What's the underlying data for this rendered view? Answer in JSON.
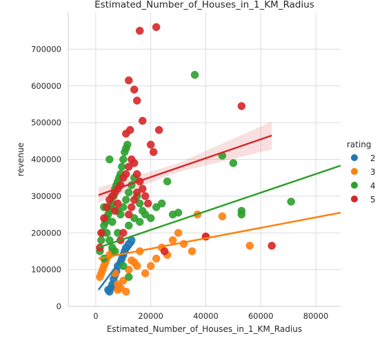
{
  "chart_data": {
    "type": "scatter",
    "title": "Estimated_Number_of_Houses_in_1_KM_Radius",
    "xlabel": "Estimated_Number_of_Houses_in_1_KM_Radius",
    "ylabel": "revenue",
    "xlim": [
      -10000,
      89000
    ],
    "ylim": [
      0,
      800000
    ],
    "xticks": [
      0,
      20000,
      40000,
      60000,
      80000
    ],
    "xtick_labels": [
      "0",
      "20000",
      "40000",
      "60000",
      "80000"
    ],
    "yticks": [
      0,
      100000,
      200000,
      300000,
      400000,
      500000,
      600000,
      700000
    ],
    "ytick_labels": [
      "0",
      "100000",
      "200000",
      "300000",
      "400000",
      "500000",
      "600000",
      "700000"
    ],
    "grid": true,
    "legend": {
      "title": "rating",
      "placement": "right"
    },
    "series": [
      {
        "name": "2",
        "color": "#1f77b4",
        "points": [
          [
            4500,
            45000
          ],
          [
            5500,
            50000
          ],
          [
            6000,
            60000
          ],
          [
            6500,
            75000
          ],
          [
            7000,
            85000
          ],
          [
            7500,
            95000
          ],
          [
            8000,
            110000
          ],
          [
            9000,
            120000
          ],
          [
            9500,
            130000
          ],
          [
            10000,
            140000
          ],
          [
            10500,
            150000
          ],
          [
            11000,
            160000
          ],
          [
            12000,
            170000
          ],
          [
            13000,
            180000
          ],
          [
            7000,
            55000
          ],
          [
            5000,
            40000
          ]
        ],
        "fit": {
          "x": [
            1000,
            14000
          ],
          "y": [
            45000,
            175000
          ]
        }
      },
      {
        "name": "3",
        "color": "#ff7f0e",
        "points": [
          [
            1500,
            80000
          ],
          [
            2000,
            90000
          ],
          [
            2500,
            100000
          ],
          [
            3000,
            110000
          ],
          [
            3500,
            120000
          ],
          [
            4000,
            130000
          ],
          [
            5000,
            140000
          ],
          [
            6000,
            150000
          ],
          [
            7000,
            90000
          ],
          [
            8000,
            60000
          ],
          [
            9000,
            50000
          ],
          [
            10000,
            70000
          ],
          [
            11000,
            40000
          ],
          [
            12000,
            100000
          ],
          [
            14000,
            120000
          ],
          [
            16000,
            150000
          ],
          [
            18000,
            90000
          ],
          [
            20000,
            110000
          ],
          [
            22000,
            130000
          ],
          [
            24000,
            160000
          ],
          [
            26000,
            140000
          ],
          [
            28000,
            180000
          ],
          [
            30000,
            200000
          ],
          [
            32000,
            170000
          ],
          [
            35000,
            150000
          ],
          [
            37000,
            250000
          ],
          [
            40000,
            190000
          ],
          [
            46000,
            245000
          ],
          [
            56000,
            165000
          ],
          [
            8000,
            45000
          ],
          [
            13000,
            125000
          ],
          [
            15000,
            110000
          ]
        ],
        "fit": {
          "x": [
            1000,
            89000
          ],
          "y": [
            130000,
            255000
          ]
        }
      },
      {
        "name": "4",
        "color": "#2ca02c",
        "points": [
          [
            1500,
            150000
          ],
          [
            2000,
            180000
          ],
          [
            2500,
            200000
          ],
          [
            3000,
            220000
          ],
          [
            3500,
            230000
          ],
          [
            4000,
            240000
          ],
          [
            4500,
            250000
          ],
          [
            5000,
            260000
          ],
          [
            5500,
            270000
          ],
          [
            6000,
            280000
          ],
          [
            6500,
            300000
          ],
          [
            7000,
            320000
          ],
          [
            7500,
            330000
          ],
          [
            8000,
            340000
          ],
          [
            8500,
            350000
          ],
          [
            9000,
            360000
          ],
          [
            9500,
            380000
          ],
          [
            10000,
            400000
          ],
          [
            10500,
            420000
          ],
          [
            11000,
            430000
          ],
          [
            11500,
            440000
          ],
          [
            5000,
            400000
          ],
          [
            3000,
            270000
          ],
          [
            4000,
            200000
          ],
          [
            5000,
            180000
          ],
          [
            6000,
            160000
          ],
          [
            7000,
            150000
          ],
          [
            8000,
            200000
          ],
          [
            9000,
            250000
          ],
          [
            10000,
            270000
          ],
          [
            11000,
            290000
          ],
          [
            12000,
            310000
          ],
          [
            13000,
            330000
          ],
          [
            14000,
            350000
          ],
          [
            15000,
            300000
          ],
          [
            16000,
            280000
          ],
          [
            17000,
            260000
          ],
          [
            18000,
            250000
          ],
          [
            20000,
            240000
          ],
          [
            22000,
            270000
          ],
          [
            24000,
            280000
          ],
          [
            26000,
            340000
          ],
          [
            28000,
            250000
          ],
          [
            30000,
            255000
          ],
          [
            36000,
            630000
          ],
          [
            46000,
            410000
          ],
          [
            50000,
            390000
          ],
          [
            53000,
            250000
          ],
          [
            53000,
            260000
          ],
          [
            71000,
            285000
          ],
          [
            6000,
            230000
          ],
          [
            8000,
            260000
          ],
          [
            12000,
            220000
          ],
          [
            14000,
            240000
          ],
          [
            16000,
            230000
          ],
          [
            3000,
            130000
          ],
          [
            10000,
            110000
          ],
          [
            12000,
            80000
          ]
        ],
        "fit": {
          "x": [
            1000,
            89000
          ],
          "y": [
            160000,
            383000
          ]
        }
      },
      {
        "name": "5",
        "color": "#d62728",
        "points": [
          [
            1500,
            160000
          ],
          [
            2000,
            200000
          ],
          [
            3000,
            240000
          ],
          [
            4000,
            270000
          ],
          [
            5000,
            290000
          ],
          [
            6000,
            300000
          ],
          [
            7000,
            310000
          ],
          [
            8000,
            320000
          ],
          [
            9000,
            330000
          ],
          [
            10000,
            350000
          ],
          [
            11000,
            360000
          ],
          [
            12000,
            380000
          ],
          [
            13000,
            400000
          ],
          [
            14000,
            390000
          ],
          [
            15000,
            360000
          ],
          [
            16000,
            340000
          ],
          [
            17000,
            320000
          ],
          [
            18000,
            300000
          ],
          [
            19000,
            280000
          ],
          [
            20000,
            440000
          ],
          [
            21000,
            420000
          ],
          [
            23000,
            480000
          ],
          [
            17000,
            505000
          ],
          [
            15000,
            560000
          ],
          [
            14000,
            590000
          ],
          [
            12000,
            615000
          ],
          [
            12500,
            480000
          ],
          [
            11000,
            470000
          ],
          [
            16000,
            750000
          ],
          [
            22000,
            760000
          ],
          [
            25000,
            150000
          ],
          [
            40000,
            190000
          ],
          [
            53000,
            545000
          ],
          [
            64000,
            165000
          ],
          [
            9000,
            180000
          ],
          [
            10000,
            200000
          ],
          [
            12000,
            250000
          ],
          [
            13000,
            270000
          ],
          [
            14000,
            290000
          ],
          [
            15000,
            310000
          ],
          [
            8000,
            280000
          ],
          [
            7000,
            260000
          ]
        ],
        "fit": {
          "x": [
            1000,
            64000
          ],
          "y": [
            303000,
            465000
          ]
        },
        "band_halfwidth": {
          "x": [
            1000,
            30000,
            64000
          ],
          "dy": [
            20000,
            12000,
            38000
          ]
        }
      }
    ]
  }
}
